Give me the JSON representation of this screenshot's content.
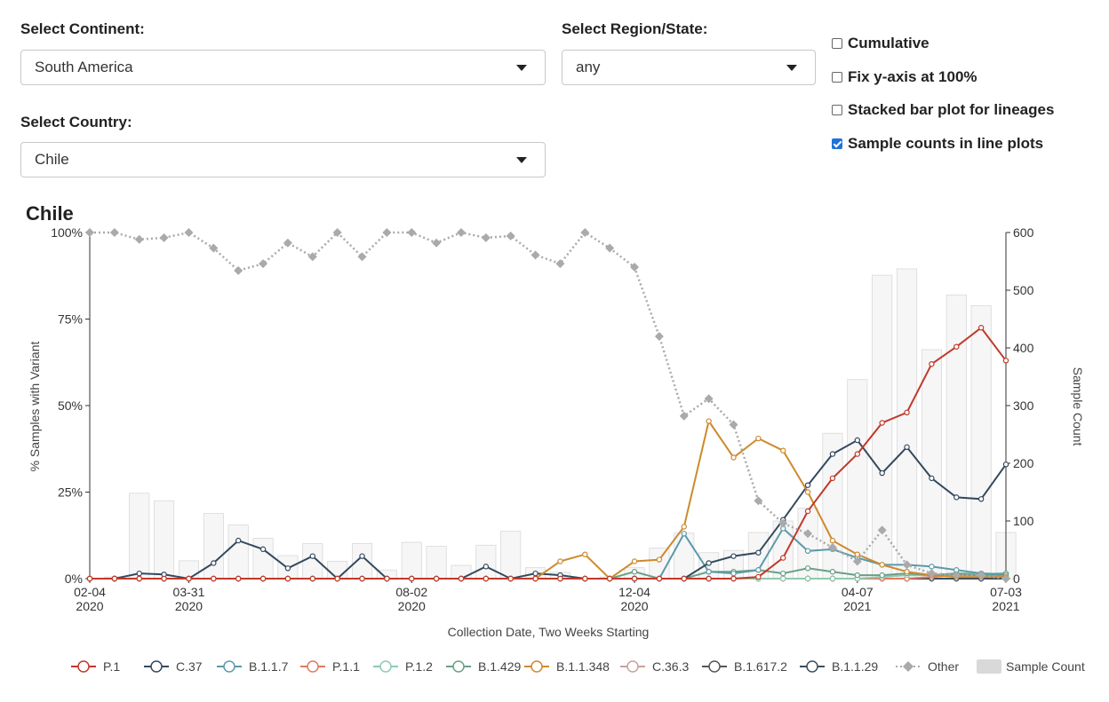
{
  "controls": {
    "continent_label": "Select Continent:",
    "continent_value": "South America",
    "region_label": "Select Region/State:",
    "region_value": "any",
    "country_label": "Select Country:",
    "country_value": "Chile",
    "checkboxes": [
      {
        "label": "Cumulative",
        "checked": false
      },
      {
        "label": "Fix y-axis at 100%",
        "checked": false
      },
      {
        "label": "Stacked bar plot for lineages",
        "checked": false
      },
      {
        "label": "Sample counts in line plots",
        "checked": true
      }
    ]
  },
  "chart_data": {
    "type": "line",
    "title": "Chile",
    "xlabel": "Collection Date, Two Weeks Starting",
    "ylabel": "% Samples with Variant",
    "y2label": "Sample Count",
    "ylim": [
      0,
      100
    ],
    "y2lim": [
      0,
      600
    ],
    "yticks": [
      "0%",
      "25%",
      "50%",
      "75%",
      "100%"
    ],
    "y2ticks": [
      "0",
      "100",
      "200",
      "300",
      "400",
      "500",
      "600"
    ],
    "xtick_labels": [
      {
        "index": 0,
        "line1": "02-04",
        "line2": "2020"
      },
      {
        "index": 4,
        "line1": "03-31",
        "line2": "2020"
      },
      {
        "index": 13,
        "line1": "08-02",
        "line2": "2020"
      },
      {
        "index": 22,
        "line1": "12-04",
        "line2": "2020"
      },
      {
        "index": 31,
        "line1": "04-07",
        "line2": "2021"
      },
      {
        "index": 37,
        "line1": "07-03",
        "line2": "2021"
      }
    ],
    "n_periods": 38,
    "sample_count": [
      0,
      3,
      148,
      135,
      31,
      113,
      93,
      70,
      40,
      61,
      30,
      61,
      15,
      63,
      56,
      23,
      58,
      82,
      19,
      11,
      0,
      3,
      19,
      53,
      79,
      45,
      49,
      80,
      100,
      122,
      252,
      345,
      526,
      537,
      397,
      492,
      473,
      80
    ],
    "series": [
      {
        "name": "P.1",
        "color": "#c0392b",
        "markers": true,
        "values": [
          0,
          0,
          0,
          0,
          0,
          0,
          0,
          0,
          0,
          0,
          0,
          0,
          0,
          0,
          0,
          0,
          0,
          0,
          0,
          0,
          0,
          0,
          0,
          0,
          0,
          0,
          0,
          0.5,
          6,
          19.5,
          29,
          36,
          45,
          48,
          62,
          67,
          72.5,
          63
        ]
      },
      {
        "name": "C.37",
        "color": "#34495e",
        "markers": true,
        "values": [
          0,
          0,
          1.5,
          1.2,
          0,
          4.5,
          11,
          8.5,
          3,
          6.5,
          0,
          6.5,
          0,
          0,
          0,
          0,
          3.5,
          0,
          1.5,
          1,
          0,
          0,
          0,
          0,
          0,
          4.5,
          6.5,
          7.5,
          17,
          27,
          36,
          40,
          30.5,
          38,
          29,
          23.5,
          23,
          33
        ]
      },
      {
        "name": "B.1.1.7",
        "color": "#5b9aa9",
        "markers": true,
        "values": [
          0,
          0,
          0,
          0,
          0,
          0,
          0,
          0,
          0,
          0,
          0,
          0,
          0,
          0,
          0,
          0,
          0,
          0,
          0,
          0,
          0,
          0,
          0,
          0,
          13,
          2,
          1.5,
          2.5,
          14.5,
          8,
          8.5,
          6,
          4,
          4,
          3.5,
          2.5,
          1.5,
          1
        ]
      },
      {
        "name": "P.1.1",
        "color": "#e07a5f",
        "markers": true,
        "values": [
          0,
          0,
          0,
          0,
          0,
          0,
          0,
          0,
          0,
          0,
          0,
          0,
          0,
          0,
          0,
          0,
          0,
          0,
          0,
          0,
          0,
          0,
          0,
          0,
          0,
          0,
          0,
          0,
          0,
          0,
          0,
          0,
          0,
          0,
          0.5,
          1,
          1,
          0.5
        ]
      },
      {
        "name": "P.1.2",
        "color": "#8fc9b0",
        "markers": true,
        "values": [
          0,
          0,
          0,
          0,
          0,
          0,
          0,
          0,
          0,
          0,
          0,
          0,
          0,
          0,
          0,
          0,
          0,
          0,
          0,
          0,
          0,
          0,
          0,
          0,
          0,
          0,
          0,
          0,
          0,
          0,
          0,
          0,
          0.5,
          1,
          1,
          1.5,
          1.5,
          1.5
        ]
      },
      {
        "name": "B.1.429",
        "color": "#6a9f86",
        "markers": true,
        "values": [
          0,
          0,
          0,
          0,
          0,
          0,
          0,
          0,
          0,
          0,
          0,
          0,
          0,
          0,
          0,
          0,
          0,
          0,
          0,
          0,
          0,
          0,
          2,
          0,
          0,
          2,
          2,
          2.5,
          1.5,
          3,
          2,
          1,
          1,
          1.5,
          1,
          1.5,
          1,
          1.5
        ]
      },
      {
        "name": "B.1.1.348",
        "color": "#cd8a2d",
        "markers": true,
        "values": [
          0,
          0,
          0,
          0,
          0,
          0,
          0,
          0,
          0,
          0,
          0,
          0,
          0,
          0,
          0,
          0,
          0,
          0,
          0,
          5,
          7,
          0,
          5,
          5.5,
          15,
          45.5,
          35,
          40.5,
          37,
          25,
          11,
          7,
          4,
          2,
          1,
          0.5,
          0.5,
          0.5
        ]
      },
      {
        "name": "C.36.3",
        "color": "#c9a19a",
        "markers": true,
        "values": [
          0,
          0,
          0,
          0,
          0,
          0,
          0,
          0,
          0,
          0,
          0,
          0,
          0,
          0,
          0,
          0,
          0,
          0,
          0,
          0,
          0,
          0,
          0,
          0,
          0,
          0,
          0,
          0,
          0,
          0,
          0,
          0,
          0,
          0,
          0,
          0,
          0,
          0
        ]
      },
      {
        "name": "B.1.617.2",
        "color": "#555555",
        "markers": true,
        "values": [
          0,
          0,
          0,
          0,
          0,
          0,
          0,
          0,
          0,
          0,
          0,
          0,
          0,
          0,
          0,
          0,
          0,
          0,
          0,
          0,
          0,
          0,
          0,
          0,
          0,
          0,
          0,
          0,
          0,
          0,
          0,
          0,
          0,
          0,
          0,
          0,
          0,
          0
        ]
      },
      {
        "name": "B.1.1.29",
        "color": "#3c4e5e",
        "markers": true,
        "values": [
          0,
          0,
          0,
          0,
          0,
          0,
          0,
          0,
          0,
          0,
          0,
          0,
          0,
          0,
          0,
          0,
          0,
          0,
          0,
          0,
          0,
          0,
          0,
          0,
          0,
          0,
          0,
          0,
          0,
          0,
          0,
          0,
          0,
          0,
          0,
          0,
          0,
          0
        ]
      },
      {
        "name": "Other",
        "color": "#aaaaaa",
        "markers": false,
        "dotted": true,
        "values": [
          100,
          100,
          98,
          98.5,
          100,
          95.5,
          89,
          91,
          97,
          93,
          100,
          93,
          100,
          100,
          97,
          100,
          98.5,
          99,
          93.5,
          91,
          100,
          95.5,
          90,
          70,
          47,
          52,
          44.5,
          22.5,
          16,
          13,
          9,
          5,
          14,
          4,
          1.5,
          1,
          1,
          0
        ]
      }
    ],
    "legend": [
      "P.1",
      "C.37",
      "B.1.1.7",
      "P.1.1",
      "P.1.2",
      "B.1.429",
      "B.1.1.348",
      "C.36.3",
      "B.1.617.2",
      "B.1.1.29",
      "Other",
      "Sample Count"
    ],
    "legend_position": "bottom"
  }
}
